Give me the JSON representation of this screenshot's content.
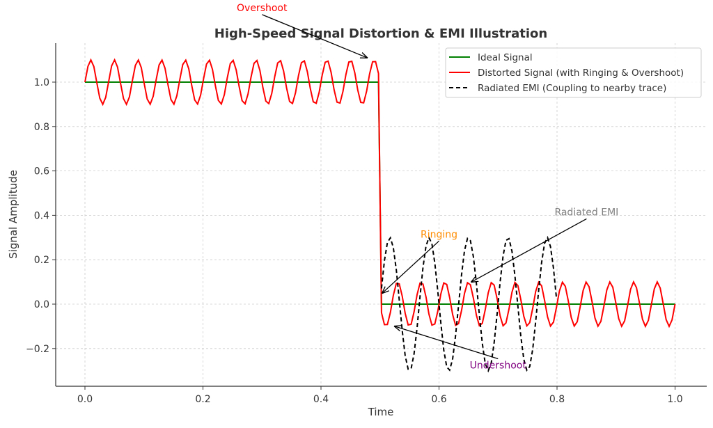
{
  "chart_data": {
    "type": "line",
    "title": "High-Speed Signal Distortion & EMI Illustration",
    "xlabel": "Time",
    "ylabel": "Signal Amplitude",
    "xlim": [
      -0.05,
      1.05
    ],
    "ylim": [
      -0.37,
      1.17
    ],
    "xticks": [
      0.0,
      0.2,
      0.4,
      0.6,
      0.8,
      1.0
    ],
    "xtick_labels": [
      "0.0",
      "0.2",
      "0.4",
      "0.6",
      "0.8",
      "1.0"
    ],
    "yticks": [
      -0.2,
      0.0,
      0.2,
      0.4,
      0.6,
      0.8,
      1.0
    ],
    "ytick_labels": [
      "−0.2",
      "0.0",
      "0.2",
      "0.4",
      "0.6",
      "0.8",
      "1.0"
    ],
    "grid": true,
    "legend_position": "top-right",
    "samples": 200,
    "series": [
      {
        "name": "Ideal Signal",
        "color": "#008000",
        "style": "solid",
        "definition": "1 for t < 0.5, 0 for t >= 0.5"
      },
      {
        "name": "Distorted Signal (with Ringing & Overshoot)",
        "color": "#ff0000",
        "style": "solid",
        "definition": "ideal + 0.1*sin(2*pi*25*t)",
        "ringing_amplitude": 0.1,
        "ringing_frequency": 25
      },
      {
        "name": "Radiated EMI (Coupling to nearby trace)",
        "color": "#000000",
        "style": "dashed",
        "definition": "0.3*sin(2*pi*15*(t-0.5)) for 0.5 <= t <= 0.8",
        "amplitude": 0.3,
        "frequency": 15,
        "t_range": [
          0.5,
          0.8
        ]
      }
    ],
    "annotations": [
      {
        "text": "Overshoot",
        "color": "#ff0000",
        "point": [
          0.478,
          1.11
        ],
        "text_pos": [
          0.3,
          1.32
        ]
      },
      {
        "text": "Ringing",
        "color": "#ff8c00",
        "point": [
          0.504,
          0.05
        ],
        "text_pos": [
          0.6,
          0.3
        ]
      },
      {
        "text": "Radiated EMI",
        "color": "#808080",
        "point": [
          0.655,
          0.1
        ],
        "text_pos": [
          0.85,
          0.4
        ]
      },
      {
        "text": "Undershoot",
        "color": "#800080",
        "point": [
          0.525,
          -0.1
        ],
        "text_pos": [
          0.7,
          -0.29
        ]
      }
    ]
  }
}
